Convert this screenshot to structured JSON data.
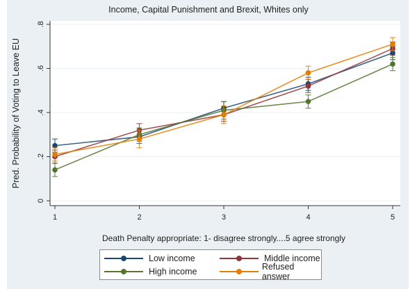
{
  "chart_data": {
    "type": "line",
    "title": "Income, Capital Punishment and Brexit, Whites only",
    "xlabel": "Death Penalty appropriate: 1- disagree strongly....5 agree strongly",
    "ylabel": "Pred. Probability of Voting to Leave EU",
    "x": [
      1,
      2,
      3,
      4,
      5
    ],
    "x_tick_labels": [
      "1",
      "2",
      "3",
      "4",
      "5"
    ],
    "y_ticks": [
      0,
      0.2,
      0.4,
      0.6,
      0.8
    ],
    "y_tick_labels": [
      "0",
      ".2",
      ".4",
      ".6",
      ".8"
    ],
    "ylim": [
      0,
      0.8
    ],
    "xlim": [
      1,
      5
    ],
    "grid": "horizontal",
    "error_bars": true,
    "legend_position": "bottom",
    "series": [
      {
        "name": "Low income",
        "color": "#1a476f",
        "values": [
          0.25,
          0.29,
          0.42,
          0.53,
          0.67
        ],
        "ci_halfwidth": [
          0.03,
          0.03,
          0.03,
          0.03,
          0.03
        ]
      },
      {
        "name": "Middle income",
        "color": "#90353b",
        "values": [
          0.2,
          0.32,
          0.39,
          0.52,
          0.69
        ],
        "ci_halfwidth": [
          0.03,
          0.03,
          0.03,
          0.03,
          0.03
        ]
      },
      {
        "name": "High income",
        "color": "#55752f",
        "values": [
          0.14,
          0.3,
          0.41,
          0.45,
          0.62
        ],
        "ci_halfwidth": [
          0.03,
          0.03,
          0.04,
          0.03,
          0.03
        ]
      },
      {
        "name": "Refused answer",
        "color": "#e37e00",
        "values": [
          0.21,
          0.28,
          0.39,
          0.58,
          0.71
        ],
        "ci_halfwidth": [
          0.03,
          0.04,
          0.04,
          0.03,
          0.03
        ]
      }
    ]
  },
  "legend": {
    "items": [
      {
        "label": "Low income",
        "color": "#1a476f"
      },
      {
        "label": "Middle income",
        "color": "#90353b"
      },
      {
        "label": "High income",
        "color": "#55752f"
      },
      {
        "label": "Refused answer",
        "color": "#e37e00"
      }
    ]
  }
}
